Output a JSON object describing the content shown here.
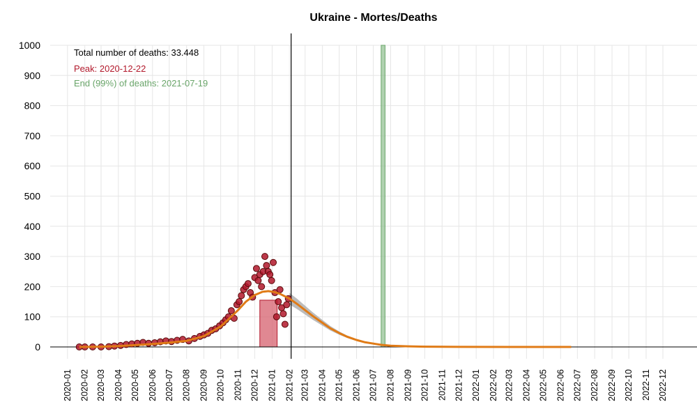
{
  "chart_data": {
    "type": "scatter",
    "title": "Ukraine - Mortes/Deaths",
    "xlabel": "",
    "ylabel": "",
    "ylim": [
      0,
      1000
    ],
    "yticks": [
      0,
      100,
      200,
      300,
      400,
      500,
      600,
      700,
      800,
      900,
      1000
    ],
    "xlim": [
      "2019-12-01",
      "2023-01-31"
    ],
    "xticks": [
      "2020-01",
      "2020-02",
      "2020-03",
      "2020-04",
      "2020-05",
      "2020-06",
      "2020-07",
      "2020-08",
      "2020-09",
      "2020-10",
      "2020-11",
      "2020-12",
      "2021-01",
      "2021-02",
      "2021-03",
      "2021-04",
      "2021-05",
      "2021-06",
      "2021-07",
      "2021-08",
      "2021-09",
      "2021-10",
      "2021-11",
      "2021-12",
      "2022-01",
      "2022-02",
      "2022-03",
      "2022-04",
      "2022-05",
      "2022-06",
      "2022-07",
      "2022-08",
      "2022-09",
      "2022-10",
      "2022-11",
      "2022-12"
    ],
    "grid": true,
    "annotations": {
      "total": "Total number of deaths: 33.448",
      "peak": "Peak: 2020-12-22",
      "end": "End (99%) of deaths: 2021-07-19"
    },
    "current_date": "2021-02-04",
    "peak_date": "2020-12-22",
    "end_date": "2021-07-19",
    "peak_band": [
      "2020-12-10",
      "2021-01-10"
    ],
    "end_band": [
      "2021-07-15",
      "2021-07-22"
    ],
    "daily_deaths": {
      "x": [
        "2020-01-22",
        "2020-02-01",
        "2020-02-15",
        "2020-03-01",
        "2020-03-15",
        "2020-03-25",
        "2020-04-05",
        "2020-04-15",
        "2020-04-25",
        "2020-05-05",
        "2020-05-15",
        "2020-05-25",
        "2020-06-05",
        "2020-06-15",
        "2020-06-25",
        "2020-07-05",
        "2020-07-15",
        "2020-07-25",
        "2020-08-05",
        "2020-08-15",
        "2020-08-25",
        "2020-09-01",
        "2020-09-08",
        "2020-09-15",
        "2020-09-22",
        "2020-09-29",
        "2020-10-05",
        "2020-10-10",
        "2020-10-15",
        "2020-10-20",
        "2020-10-25",
        "2020-10-30",
        "2020-11-03",
        "2020-11-07",
        "2020-11-11",
        "2020-11-15",
        "2020-11-19",
        "2020-11-23",
        "2020-11-27",
        "2020-12-01",
        "2020-12-04",
        "2020-12-07",
        "2020-12-10",
        "2020-12-13",
        "2020-12-16",
        "2020-12-19",
        "2020-12-22",
        "2020-12-25",
        "2020-12-28",
        "2020-12-31",
        "2021-01-03",
        "2021-01-06",
        "2021-01-09",
        "2021-01-12",
        "2021-01-15",
        "2021-01-18",
        "2021-01-21",
        "2021-01-24",
        "2021-01-27",
        "2021-01-30"
      ],
      "y": [
        0,
        0,
        0,
        0,
        1,
        3,
        5,
        8,
        10,
        12,
        15,
        12,
        14,
        17,
        20,
        18,
        22,
        25,
        20,
        28,
        35,
        40,
        45,
        55,
        60,
        70,
        80,
        90,
        100,
        120,
        95,
        140,
        150,
        170,
        190,
        200,
        210,
        180,
        165,
        230,
        260,
        220,
        240,
        200,
        250,
        300,
        270,
        250,
        240,
        220,
        280,
        180,
        100,
        150,
        190,
        130,
        110,
        75,
        140,
        160
      ]
    },
    "fit_curve": {
      "x": [
        "2020-01-22",
        "2020-03-01",
        "2020-04-01",
        "2020-05-01",
        "2020-06-01",
        "2020-07-01",
        "2020-08-01",
        "2020-09-01",
        "2020-10-01",
        "2020-10-15",
        "2020-11-01",
        "2020-11-15",
        "2020-12-01",
        "2020-12-15",
        "2020-12-25",
        "2021-01-05",
        "2021-01-15",
        "2021-02-01",
        "2021-02-15",
        "2021-03-01",
        "2021-03-15",
        "2021-04-01",
        "2021-04-15",
        "2021-05-01",
        "2021-05-15",
        "2021-06-01",
        "2021-06-15",
        "2021-07-01",
        "2021-07-15",
        "2021-08-01",
        "2021-09-01",
        "2021-10-01",
        "2021-12-01",
        "2022-03-01",
        "2022-06-20"
      ],
      "y": [
        0,
        1,
        3,
        6,
        10,
        14,
        20,
        36,
        68,
        92,
        122,
        150,
        172,
        183,
        185,
        182,
        176,
        160,
        142,
        122,
        102,
        80,
        62,
        46,
        34,
        23,
        16,
        11,
        7,
        4,
        2,
        1,
        0.3,
        0.1,
        0
      ]
    },
    "colors": {
      "points_fill": "#b2182b",
      "points_stroke": "#5a0a0a",
      "fit_line": "#e07b16",
      "ci_band": "#a6a6a6",
      "peak_band": "#d6606d",
      "end_band": "#8fbf8f",
      "peak_text": "#b2182b",
      "end_text": "#6aa56a"
    }
  }
}
